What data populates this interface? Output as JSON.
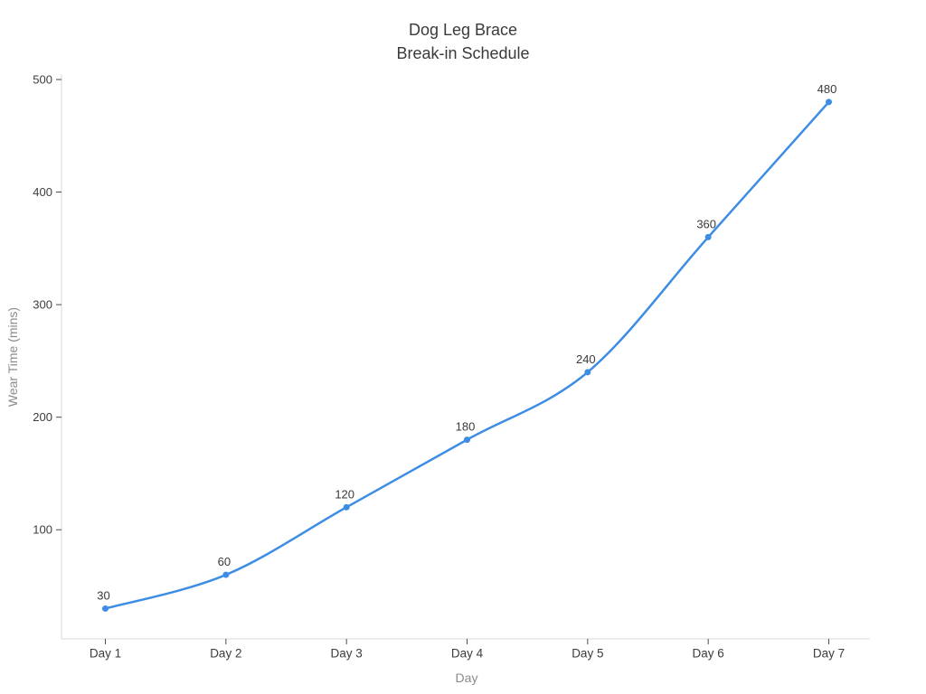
{
  "chart_data": {
    "type": "line",
    "title": "Dog Leg Brace",
    "subtitle": "Break-in Schedule",
    "categories": [
      "Day 1",
      "Day 2",
      "Day 3",
      "Day 4",
      "Day 5",
      "Day 6",
      "Day 7"
    ],
    "values": [
      30,
      60,
      120,
      180,
      240,
      360,
      480
    ],
    "point_labels": [
      "30",
      "60",
      "120",
      "180",
      "240",
      "360",
      "480"
    ],
    "xlabel": "Day",
    "ylabel": "Wear Time (mins)",
    "yticks": [
      100,
      200,
      300,
      400,
      500
    ],
    "ylim": [
      0,
      505
    ],
    "grid": false,
    "legend": false,
    "line_shape": "spline",
    "markers": true,
    "colors": {
      "line": "#3d8de4",
      "marker": "#3d8de4",
      "title_text": "#3a3a3a",
      "tick_text": "#3d3d3d",
      "point_label_text": "#3a3a3a",
      "axis_label_text": "#8b8b8b",
      "spine": "#d9d9d9",
      "tick_mark": "#4a4a4a",
      "background": "#ffffff"
    }
  }
}
